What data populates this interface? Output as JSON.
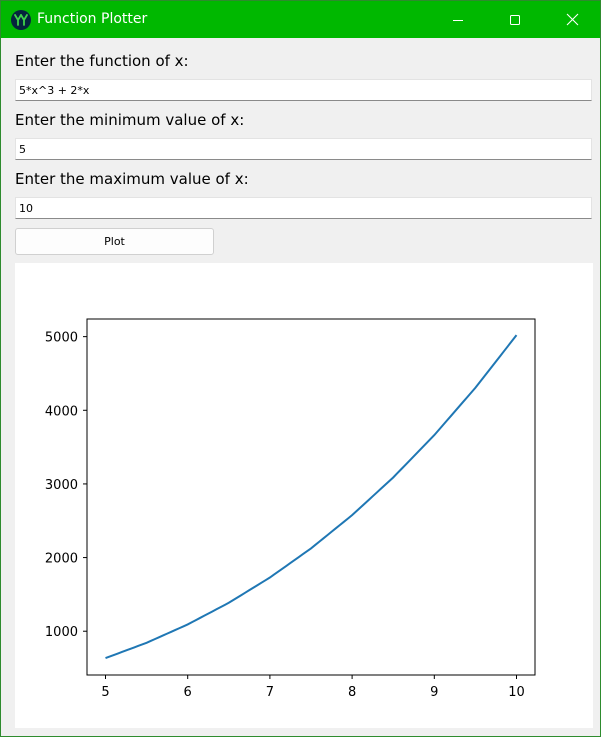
{
  "window": {
    "title": "Function Plotter",
    "app_icon": "yy-logo-icon",
    "controls": [
      "minimize-icon",
      "maximize-icon",
      "close-icon"
    ],
    "accent_color": "#00b800"
  },
  "form": {
    "function_label": "Enter the function of x:",
    "function_value": "5*x^3 + 2*x",
    "min_label": "Enter the minimum value of x:",
    "min_value": "5",
    "max_label": "Enter the maximum value of x:",
    "max_value": "10",
    "plot_button": "Plot"
  },
  "chart_data": {
    "type": "line",
    "title": "",
    "xlabel": "",
    "ylabel": "",
    "xlim": [
      4.775,
      10.225
    ],
    "ylim": [
      405.5,
      5239.5
    ],
    "xticks": [
      5,
      6,
      7,
      8,
      9,
      10
    ],
    "yticks": [
      1000,
      2000,
      3000,
      4000,
      5000
    ],
    "grid": false,
    "line_color": "#1f77b4",
    "series": [
      {
        "x": [
          5,
          5.5,
          6,
          6.5,
          7,
          7.5,
          8,
          8.5,
          9,
          9.5,
          10
        ],
        "values": [
          635,
          842.9,
          1092,
          1386.1,
          1729,
          2124.4,
          2576,
          3087.6,
          3663,
          4305.9,
          5020
        ]
      }
    ]
  }
}
